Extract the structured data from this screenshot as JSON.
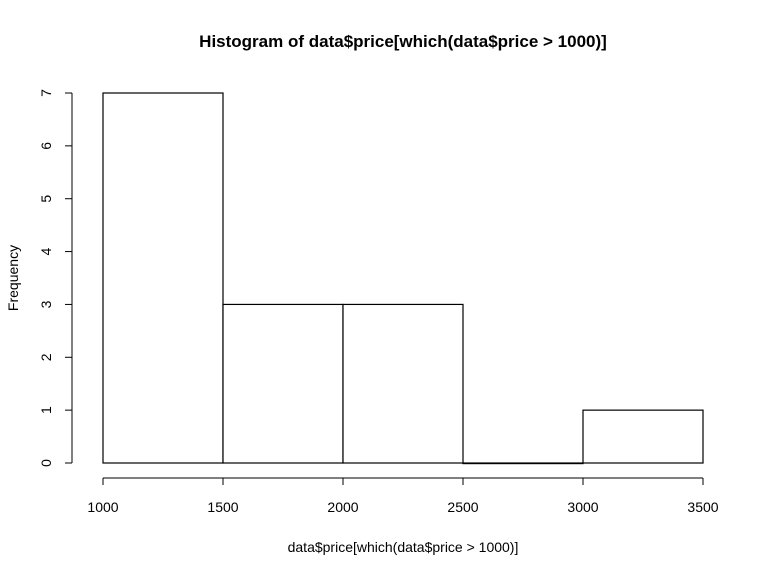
{
  "chart_data": {
    "type": "bar",
    "title": "Histogram of data$price[which(data$price > 1000)]",
    "xlabel": "data$price[which(data$price > 1000)]",
    "ylabel": "Frequency",
    "bins": [
      {
        "start": 1000,
        "end": 1500,
        "count": 7
      },
      {
        "start": 1500,
        "end": 2000,
        "count": 3
      },
      {
        "start": 2000,
        "end": 2500,
        "count": 3
      },
      {
        "start": 2500,
        "end": 3000,
        "count": 0
      },
      {
        "start": 3000,
        "end": 3500,
        "count": 1
      }
    ],
    "xlim": [
      1000,
      3500
    ],
    "ylim": [
      0,
      7
    ],
    "x_ticks": [
      1000,
      1500,
      2000,
      2500,
      3000,
      3500
    ],
    "y_ticks": [
      0,
      1,
      2,
      3,
      4,
      5,
      6,
      7
    ],
    "grid": false
  }
}
